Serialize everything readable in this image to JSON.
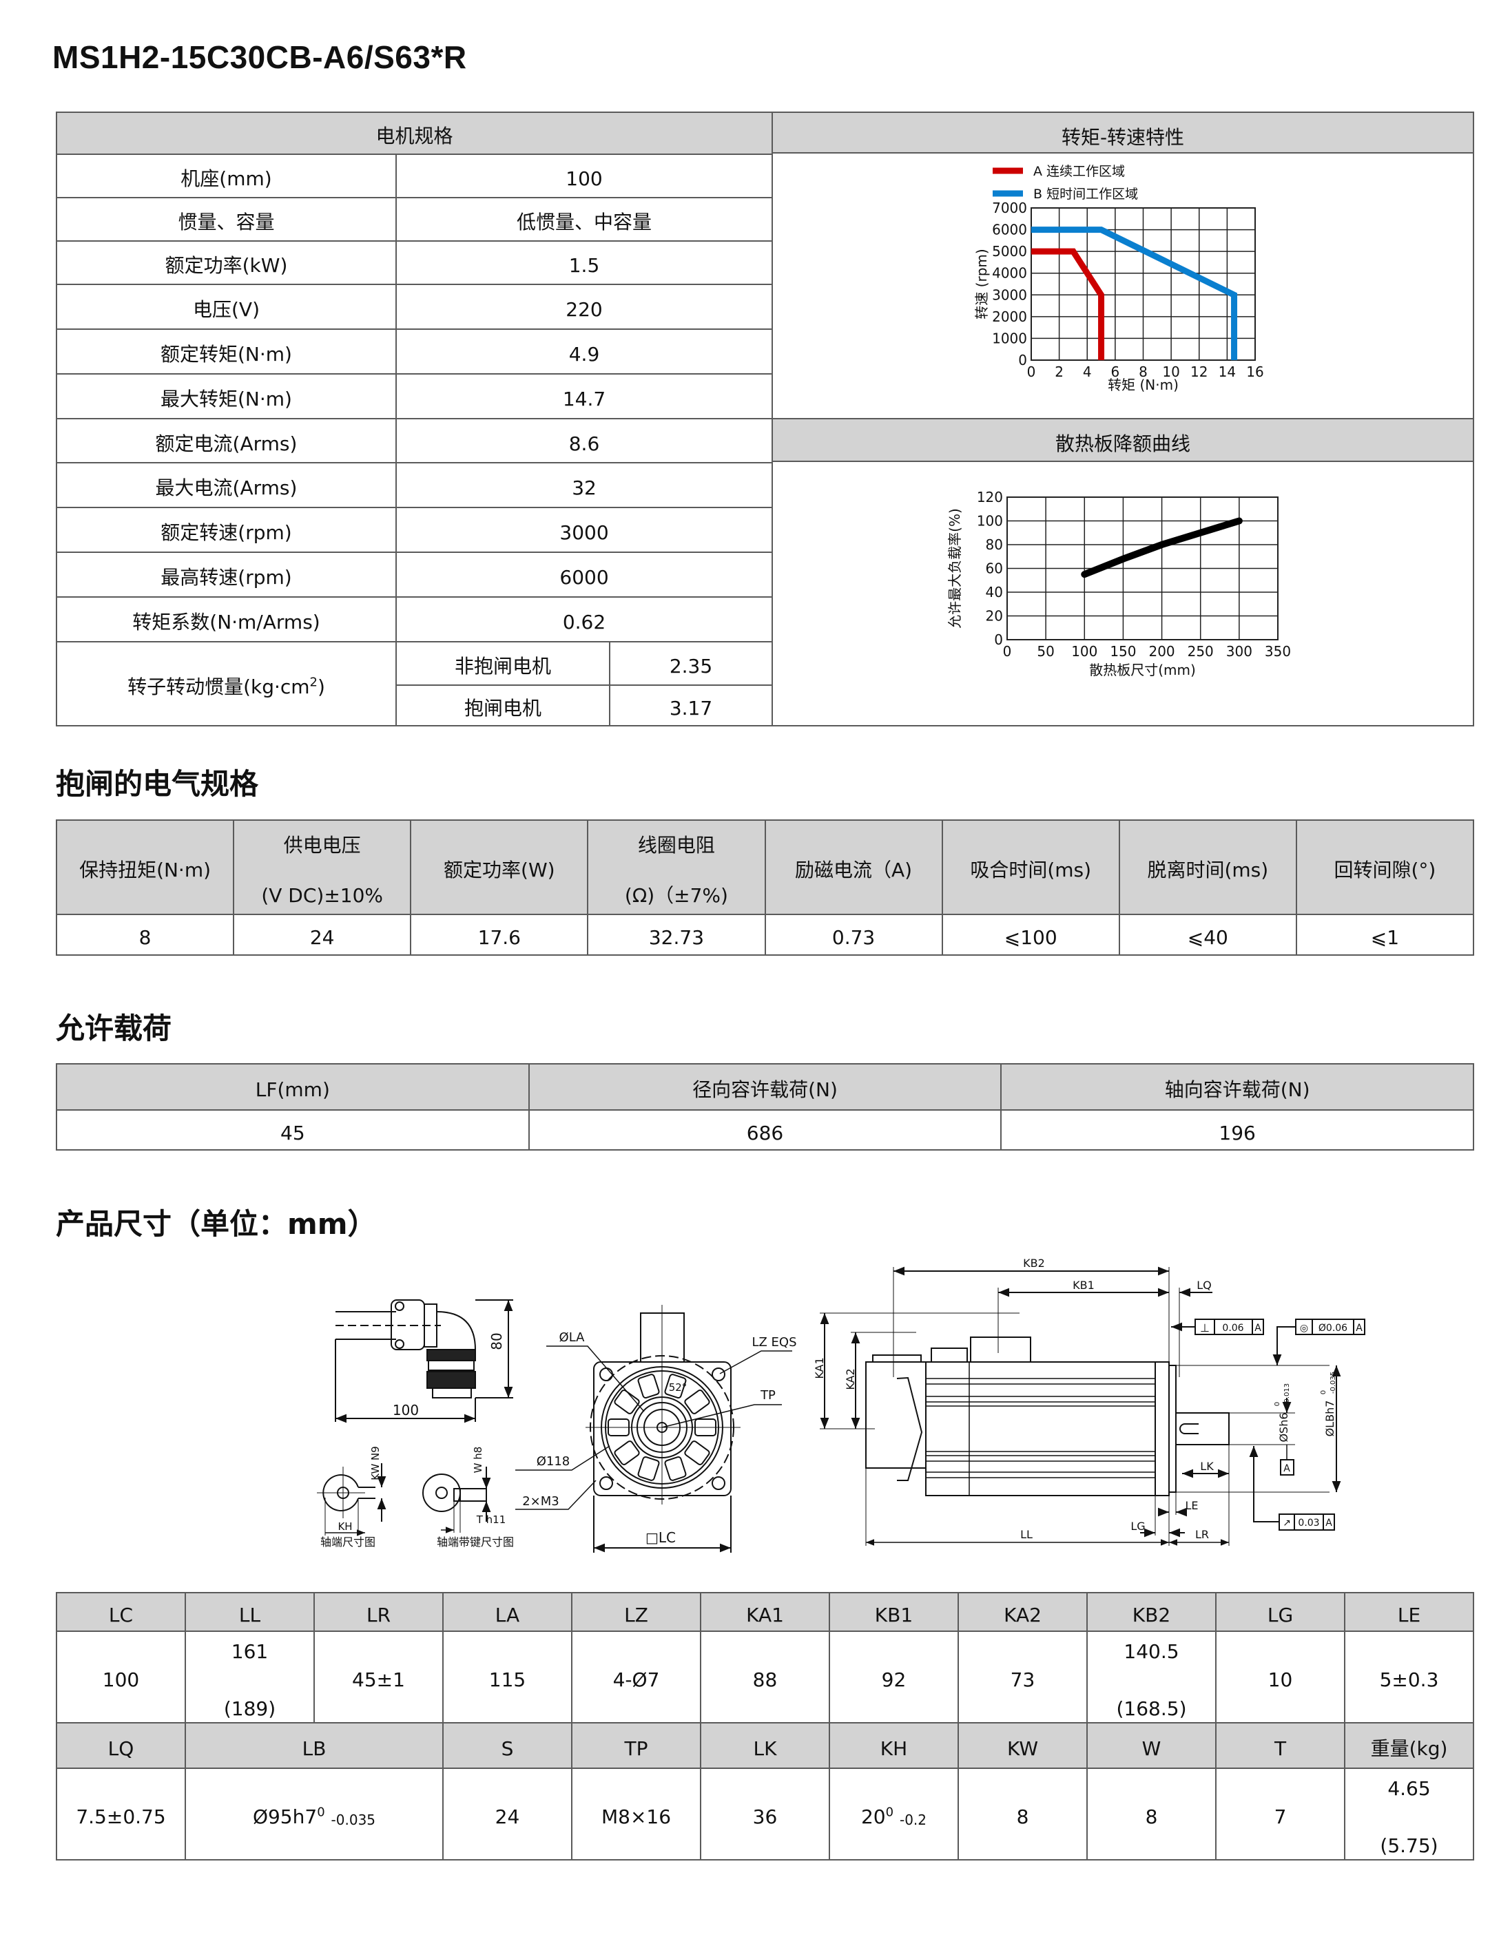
{
  "title": "MS1H2-15C30CB-A6/S63*R",
  "motor_spec": {
    "header": "电机规格",
    "rows": [
      {
        "label": "机座(mm)",
        "value": "100"
      },
      {
        "label": "惯量、容量",
        "value": "低惯量、中容量"
      },
      {
        "label": "额定功率(kW)",
        "value": "1.5"
      },
      {
        "label": "电压(V)",
        "value": "220"
      },
      {
        "label": "额定转矩(N·m)",
        "value": "4.9"
      },
      {
        "label": "最大转矩(N·m)",
        "value": "14.7"
      },
      {
        "label": "额定电流(Arms)",
        "value": "8.6"
      },
      {
        "label": "最大电流(Arms)",
        "value": "32"
      },
      {
        "label": "额定转速(rpm)",
        "value": "3000"
      },
      {
        "label": "最高转速(rpm)",
        "value": "6000"
      },
      {
        "label": "转矩系数(N·m/Arms)",
        "value": "0.62"
      }
    ],
    "inertia": {
      "label_main": "转子转动惯量(kg·cm",
      "label_sup": "2",
      "label_end": ")",
      "sub": [
        {
          "label": "非抱闸电机",
          "value": "2.35"
        },
        {
          "label": "抱闸电机",
          "value": "3.17"
        }
      ]
    }
  },
  "torque_speed": {
    "header": "转矩-转速特性"
  },
  "derating": {
    "header": "散热板降额曲线"
  },
  "brake": {
    "title": "抱闸的电气规格",
    "headers": [
      {
        "l1": "保持扭矩(N·m)"
      },
      {
        "l1": "供电电压",
        "l2": "(V DC)±10%"
      },
      {
        "l1": "额定功率(W)"
      },
      {
        "l1": "线圈电阻",
        "l2": "(Ω)（±7%)"
      },
      {
        "l1": "励磁电流（A)"
      },
      {
        "l1": "吸合时间(ms)"
      },
      {
        "l1": "脱离时间(ms)"
      },
      {
        "l1": "回转间隙(°)"
      }
    ],
    "values": [
      "8",
      "24",
      "17.6",
      "32.73",
      "0.73",
      "⩽100",
      "⩽40",
      "⩽1"
    ]
  },
  "load": {
    "title": "允许载荷",
    "headers": [
      "LF(mm)",
      "径向容许载荷(N)",
      "轴向容许载荷(N)"
    ],
    "values": [
      "45",
      "686",
      "196"
    ]
  },
  "dimensions": {
    "title": "产品尺寸（单位：mm）",
    "drawing_labels": {
      "d80": "80",
      "d100": "100",
      "la": "ØLA",
      "lz": "LZ EQS",
      "tp": "TP",
      "d118": "Ø118",
      "m3": "2×M3",
      "lc": "□LC",
      "angle": "52°",
      "kh": "KH",
      "kw": "KW N9",
      "w": "W h8",
      "t": "T h11",
      "shaft1": "轴端尺寸图",
      "shaft2": "轴端带键尺寸图",
      "kb2": "KB2",
      "kb1": "KB1",
      "lq": "LQ",
      "ka1": "KA1",
      "ka2": "KA2",
      "lk": "LK",
      "le": "LE",
      "lg": "LG",
      "ll": "LL",
      "lr": "LR",
      "sh6": "ØSh6",
      "sh6_tol_up": "0",
      "sh6_tol_low": "-0.013",
      "lbh7": "ØLBh7",
      "lbh7_tol_up": "0",
      "lbh7_tol_low": "-0.035",
      "perp_sym": "⊥",
      "perp_val": "0.06",
      "conc_sym": "◎",
      "conc_val": "Ø0.06",
      "run_sym": "↗",
      "run_val": "0.03",
      "datum": "A"
    },
    "row1_headers": [
      "LC",
      "LL",
      "LR",
      "LA",
      "LZ",
      "KA1",
      "KB1",
      "KA2",
      "KB2",
      "LG",
      "LE"
    ],
    "row1_values": [
      "100",
      {
        "l1": "161",
        "l2": "(189)"
      },
      "45±1",
      "115",
      "4-Ø7",
      "88",
      "92",
      "73",
      {
        "l1": "140.5",
        "l2": "(168.5)"
      },
      "10",
      "5±0.3"
    ],
    "row2_headers": [
      "LQ",
      "LB",
      "S",
      "TP",
      "LK",
      "KH",
      "KW",
      "W",
      "T",
      "重量(kg)"
    ],
    "row2_values": {
      "lq": "7.5±0.75",
      "lb": {
        "main": "Ø95h7",
        "sup": "0",
        "sub": "-0.035"
      },
      "s": "24",
      "tp": "M8×16",
      "lk": "36",
      "kh": {
        "main": "20",
        "sup": "0",
        "sub": "-0.2"
      },
      "kw": "8",
      "w": "8",
      "t": "7",
      "weight": {
        "l1": "4.65",
        "l2": "(5.75)"
      }
    }
  },
  "chart_data": [
    {
      "type": "line",
      "xlabel": "转矩 (N·m)",
      "ylabel": "转速 (rpm)",
      "xlim": [
        0,
        16
      ],
      "ylim": [
        0,
        7000
      ],
      "xticks": [
        0,
        2,
        4,
        6,
        8,
        10,
        12,
        14,
        16
      ],
      "yticks": [
        0,
        1000,
        2000,
        3000,
        4000,
        5000,
        6000,
        7000
      ],
      "grid": true,
      "legend": "top-left",
      "series": [
        {
          "name": "A 连续工作区域",
          "color": "#cc0000",
          "x": [
            0,
            3,
            5,
            5
          ],
          "y": [
            5000,
            5000,
            3000,
            0
          ]
        },
        {
          "name": "B 短时间工作区域",
          "color": "#0a7fcf",
          "x": [
            0,
            5,
            14.5,
            14.5
          ],
          "y": [
            6000,
            6000,
            3000,
            0
          ]
        }
      ]
    },
    {
      "type": "line",
      "xlabel": "散热板尺寸(mm)",
      "ylabel": "允许最大负载率(%)",
      "xlim": [
        0,
        350
      ],
      "ylim": [
        0,
        120
      ],
      "xticks": [
        0,
        50,
        100,
        150,
        200,
        250,
        300,
        350
      ],
      "yticks": [
        0,
        20,
        40,
        60,
        80,
        100,
        120
      ],
      "grid": true,
      "series": [
        {
          "color": "#000000",
          "x": [
            100,
            150,
            200,
            250,
            300
          ],
          "y": [
            55,
            68,
            80,
            90,
            100
          ]
        }
      ]
    }
  ]
}
